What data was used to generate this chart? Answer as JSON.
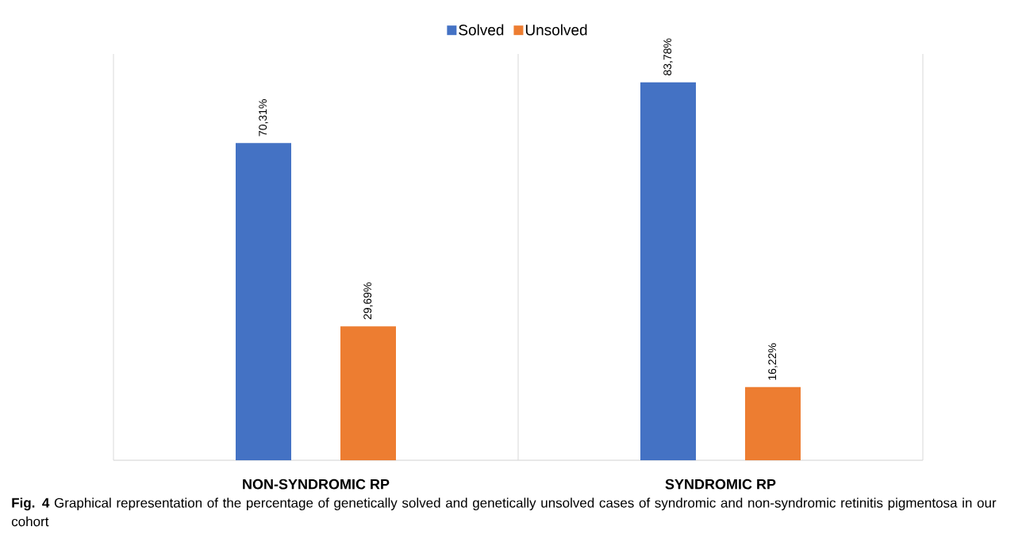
{
  "chart_data": {
    "type": "bar",
    "categories": [
      "NON-SYNDROMIC RP",
      "SYNDROMIC RP"
    ],
    "series": [
      {
        "name": "Solved",
        "color": "#4472c4",
        "values": [
          70.31,
          83.78
        ],
        "value_labels": [
          "70,31%",
          "83,78%"
        ]
      },
      {
        "name": "Unsolved",
        "color": "#ed7d31",
        "values": [
          29.69,
          16.22
        ],
        "value_labels": [
          "29,69%",
          "16,22%"
        ]
      }
    ],
    "tick_labels": "x",
    "grid": "x",
    "legend": "top",
    "annotations": [
      "**Fig. 4** Graphical representation of the percentage of genetically solved and genetically unsolved cases of syndromic and non-syndromic retinitis pigmentosa in our cohort"
    ]
  }
}
